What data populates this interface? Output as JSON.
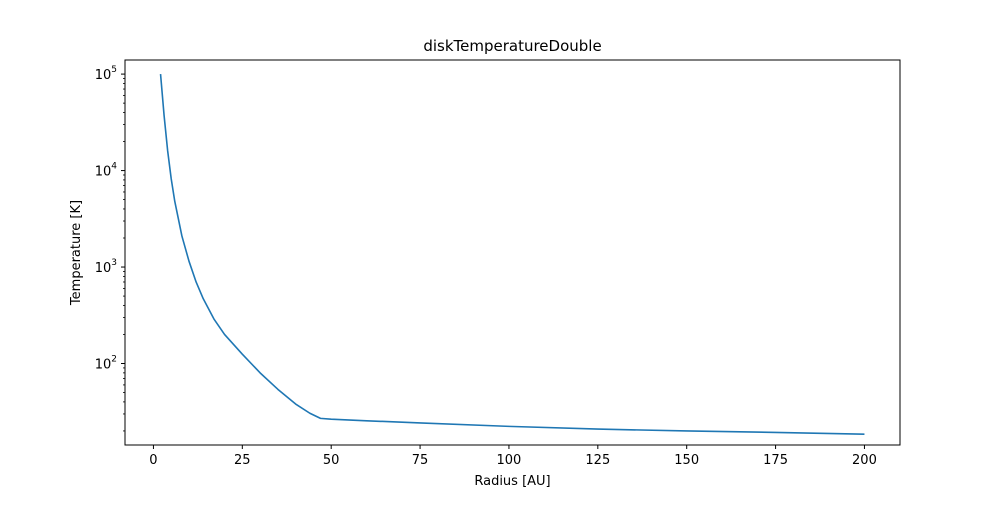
{
  "chart_data": {
    "type": "line",
    "title": "diskTemperatureDouble",
    "xlabel": "Radius [AU]",
    "ylabel": "Temperature [K]",
    "xlim": [
      -8,
      210
    ],
    "ylim": [
      14.3,
      140000
    ],
    "yscale": "log",
    "grid": false,
    "x_ticks": [
      0,
      25,
      50,
      75,
      100,
      125,
      150,
      175,
      200
    ],
    "y_ticks": [
      {
        "value": 100,
        "base": "10",
        "exp": "2"
      },
      {
        "value": 1000,
        "base": "10",
        "exp": "3"
      },
      {
        "value": 10000,
        "base": "10",
        "exp": "4"
      },
      {
        "value": 100000,
        "base": "10",
        "exp": "5"
      }
    ],
    "series": [
      {
        "color": "#1f77b4",
        "x": [
          2,
          3,
          4,
          5,
          6,
          8,
          10,
          12,
          14,
          17,
          20,
          25,
          30,
          35,
          40,
          44,
          47,
          50,
          60,
          75,
          100,
          125,
          150,
          175,
          200
        ],
        "y": [
          100000,
          37000,
          16000,
          8200,
          4800,
          2100,
          1150,
          700,
          470,
          290,
          200,
          125,
          80,
          54,
          38,
          30.5,
          27,
          26.5,
          25.5,
          24.2,
          22.3,
          20.9,
          20.0,
          19.3,
          18.5
        ]
      }
    ]
  }
}
